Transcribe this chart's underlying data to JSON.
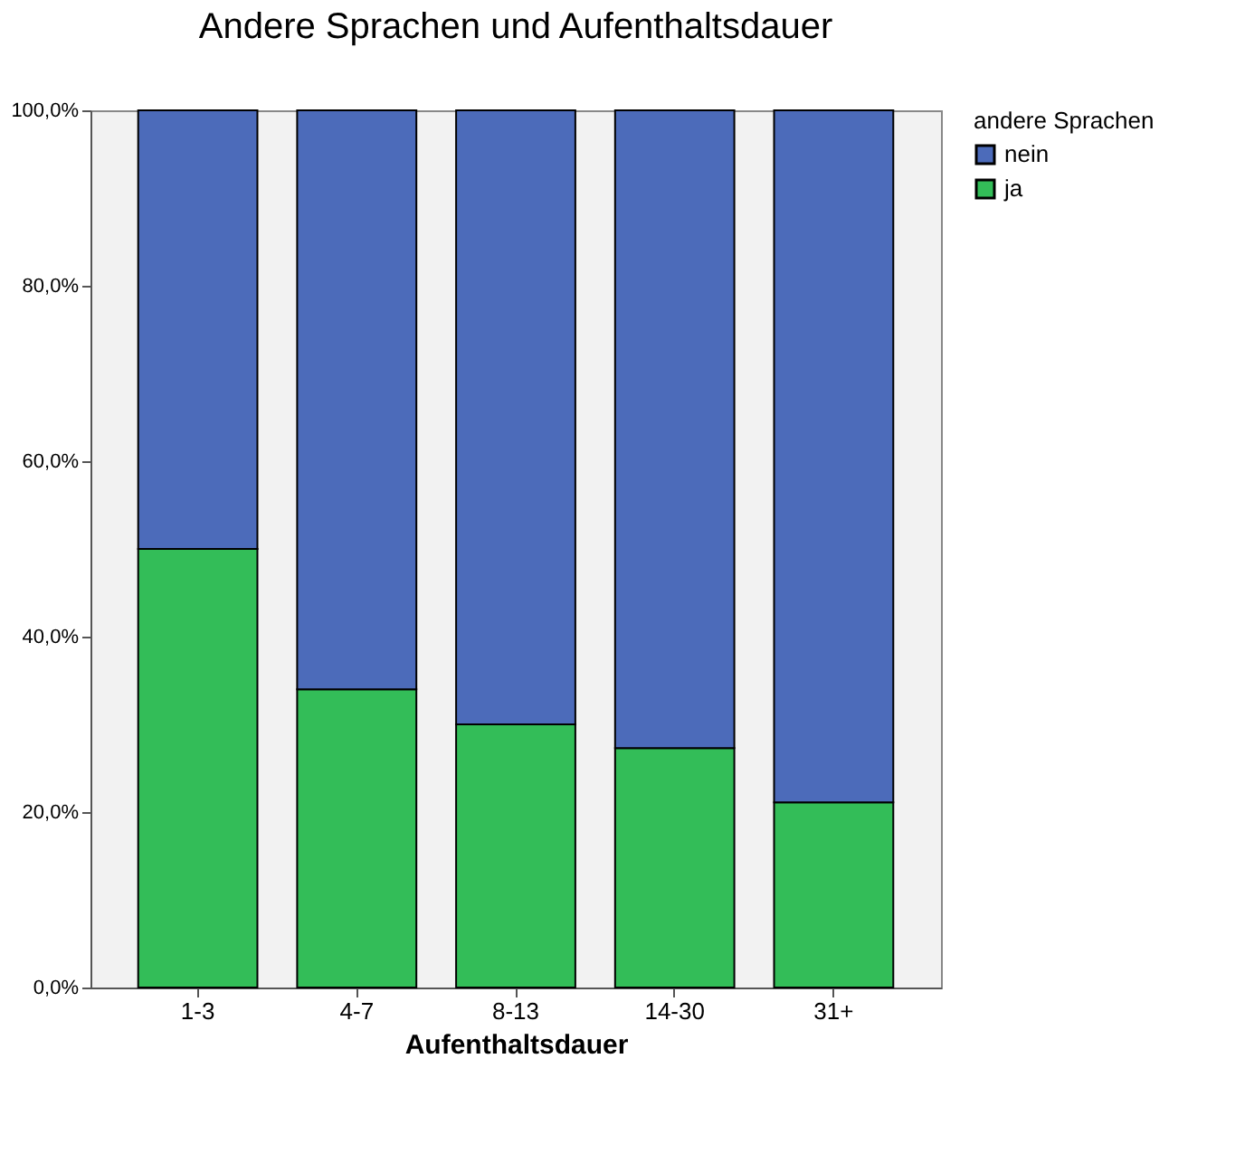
{
  "chart_data": {
    "type": "bar",
    "title": "Andere Sprachen und Aufenthaltsdauer",
    "xlabel": "Aufenthaltsdauer",
    "legend_title": "andere Sprachen",
    "categories": [
      "1-3",
      "4-7",
      "8-13",
      "14-30",
      "31+"
    ],
    "stacked": true,
    "series": [
      {
        "name": "ja",
        "color": "#33bd58",
        "values": [
          50,
          34,
          30,
          27.3,
          21.1
        ]
      },
      {
        "name": "nein",
        "color": "#4c6bba",
        "values": [
          50,
          66,
          70,
          72.7,
          78.9
        ]
      }
    ],
    "ylim": [
      0,
      100
    ],
    "yticks": [
      {
        "value": 0,
        "label": "0,0%"
      },
      {
        "value": 20,
        "label": "20,0%"
      },
      {
        "value": 40,
        "label": "40,0%"
      },
      {
        "value": 60,
        "label": "60,0%"
      },
      {
        "value": 80,
        "label": "80,0%"
      },
      {
        "value": 100,
        "label": "100,0%"
      }
    ],
    "grid": false,
    "legend": "top right"
  }
}
